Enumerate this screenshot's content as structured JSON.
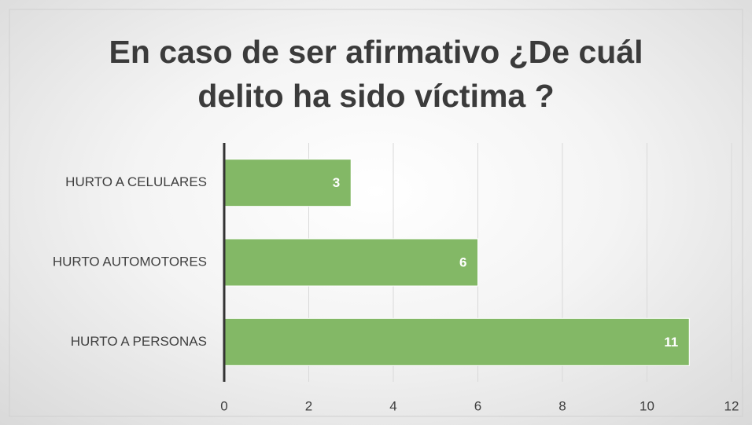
{
  "chart_data": {
    "type": "bar",
    "orientation": "horizontal",
    "title": "En caso de ser afirmativo ¿De cuál delito ha sido víctima ?",
    "categories": [
      "HURTO A CELULARES",
      "HURTO AUTOMOTORES",
      "HURTO A PERSONAS"
    ],
    "values": [
      3,
      6,
      11
    ],
    "color": "#83b866",
    "xlim": [
      0,
      12
    ],
    "xticks": [
      0,
      2,
      4,
      6,
      8,
      10,
      12
    ],
    "grid": true
  }
}
